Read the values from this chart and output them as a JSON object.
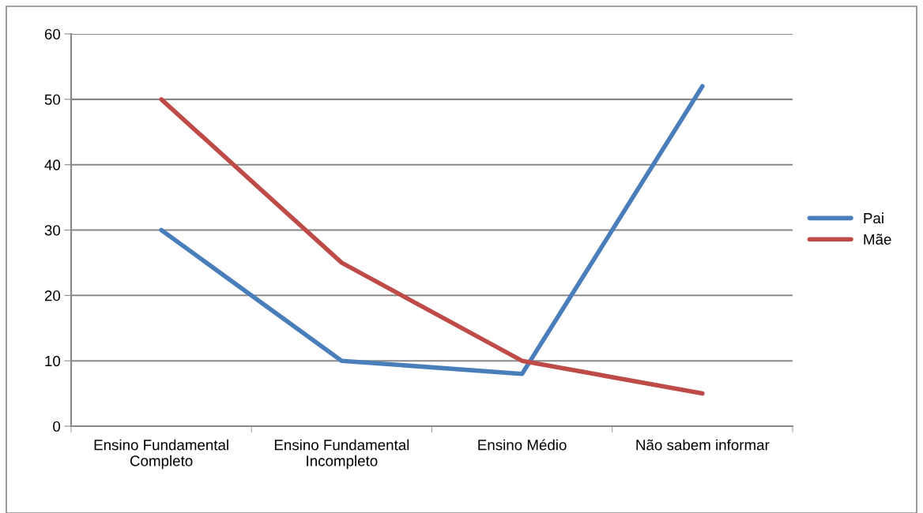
{
  "chart_data": {
    "type": "line",
    "categories": [
      "Ensino Fundamental\nCompleto",
      "Ensino Fundamental\nIncompleto",
      "Ensino Médio",
      "Não sabem informar"
    ],
    "series": [
      {
        "name": "Pai",
        "color": "#4a7ebb",
        "values": [
          30,
          10,
          8,
          52
        ]
      },
      {
        "name": "Mãe",
        "color": "#be4b48",
        "values": [
          50,
          25,
          10,
          5
        ]
      }
    ],
    "ylim": [
      0,
      60
    ],
    "yticks": [
      0,
      10,
      20,
      30,
      40,
      50,
      60
    ],
    "grid": "y",
    "legend": "right",
    "marker": "none",
    "line_style": "solid"
  }
}
